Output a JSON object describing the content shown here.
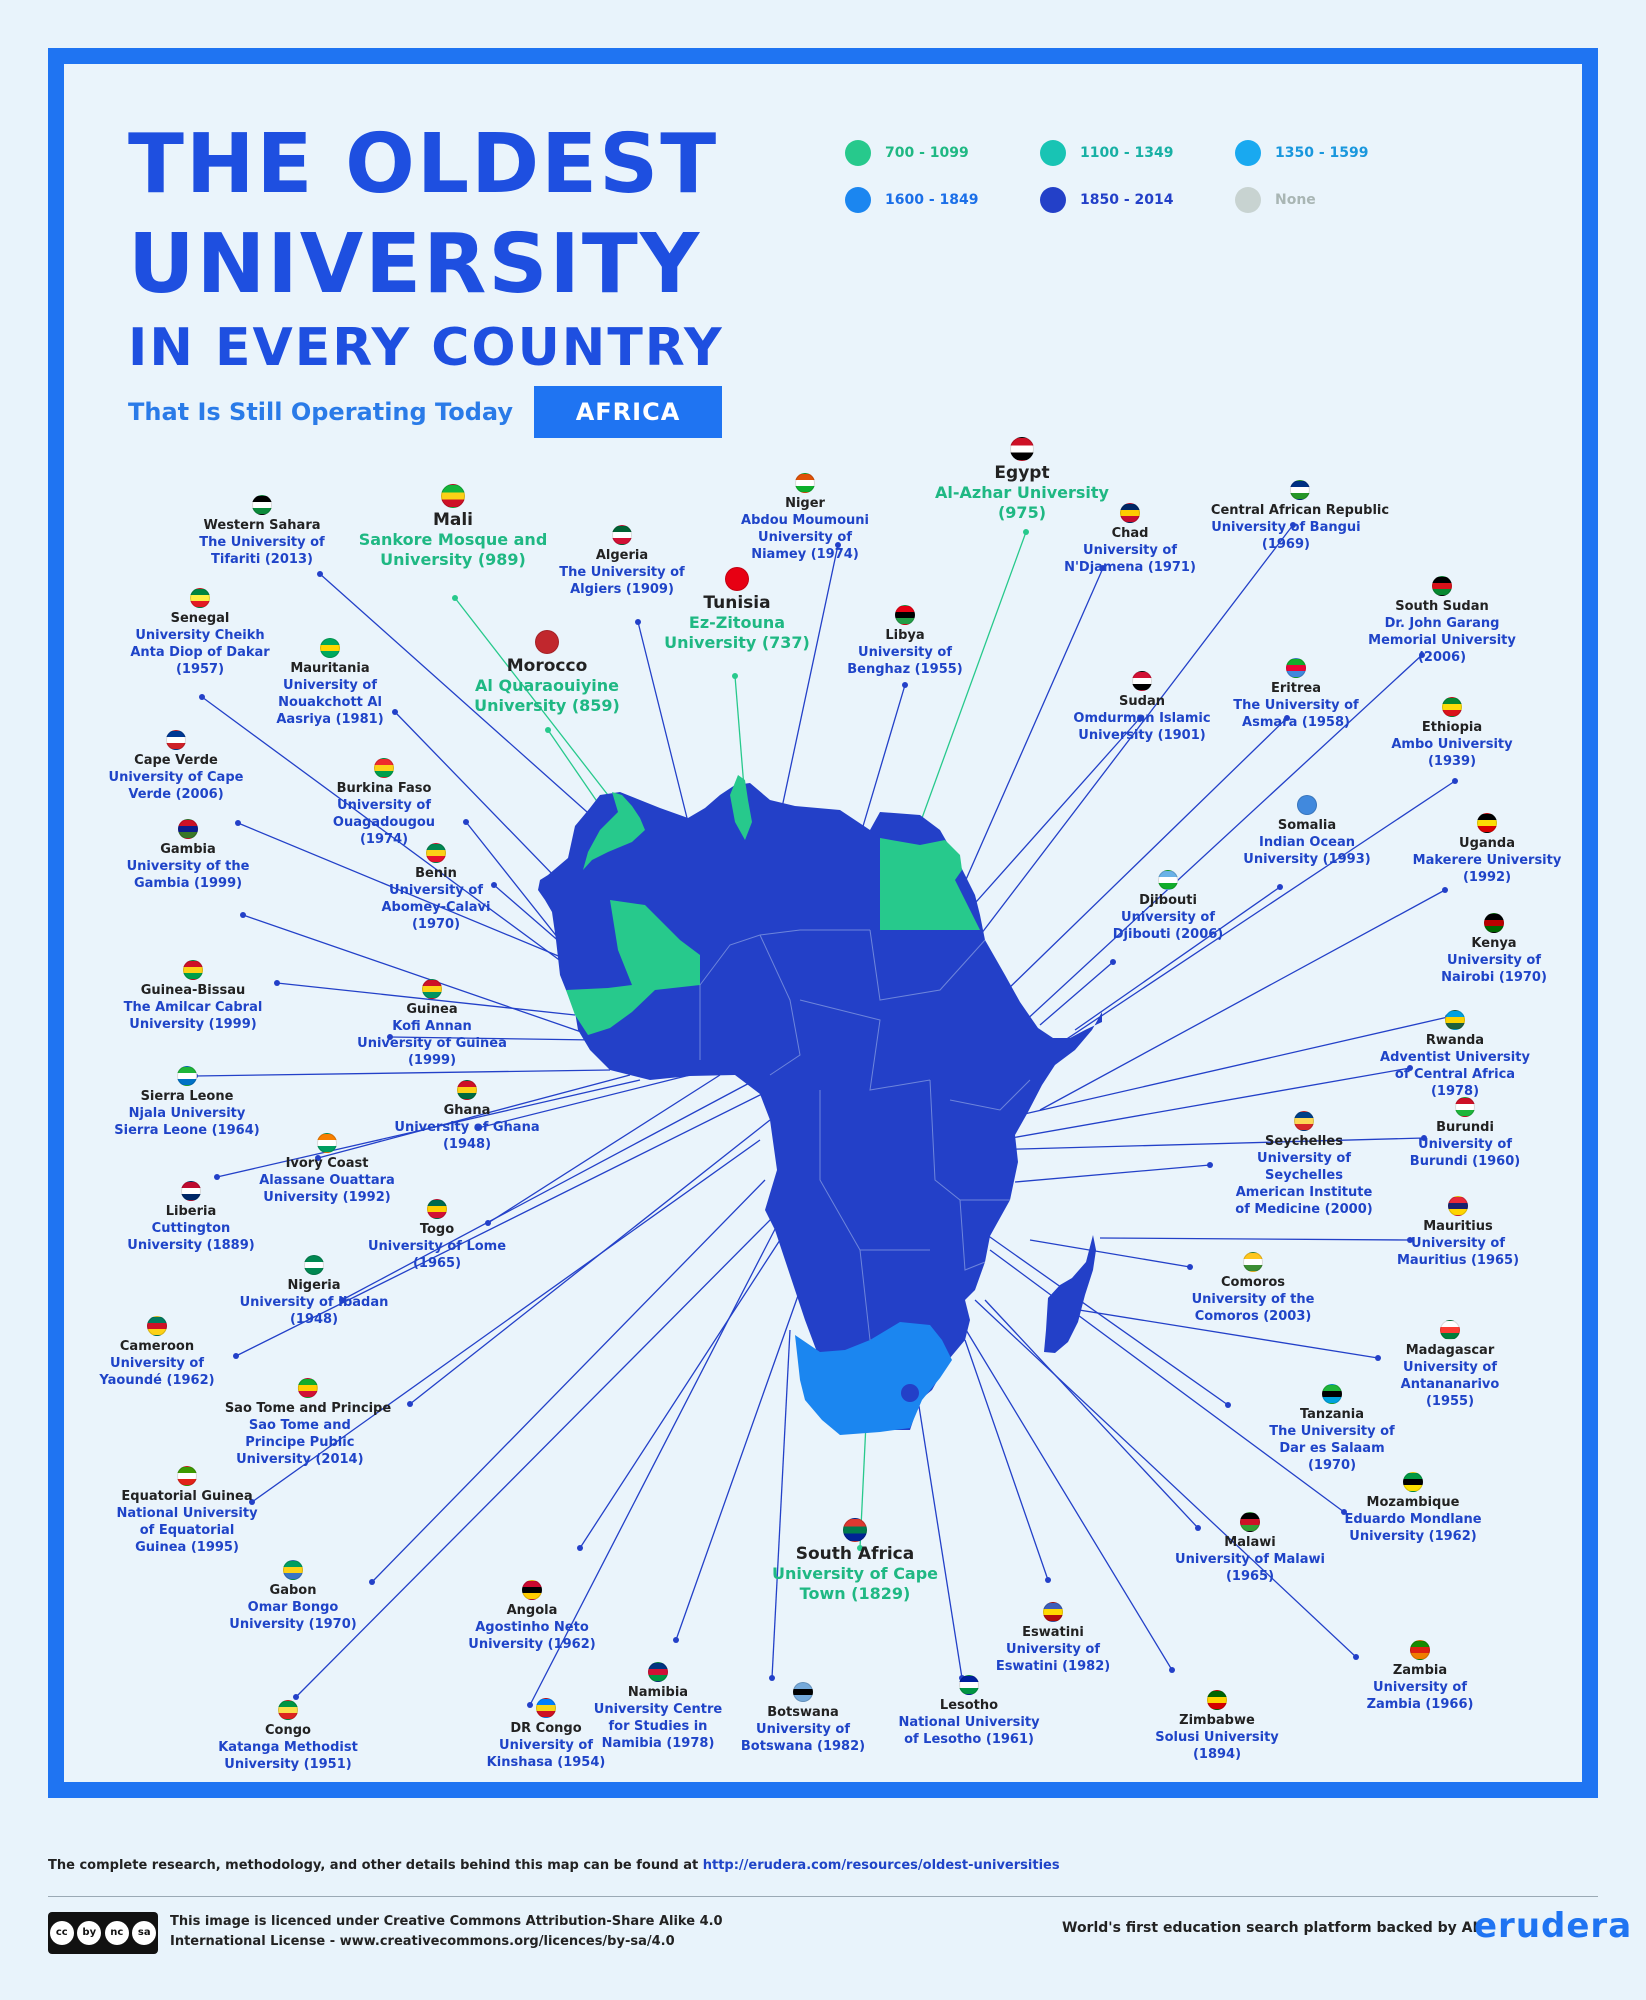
{
  "title": {
    "line1": "THE OLDEST",
    "line2": "UNIVERSITY",
    "line3": "IN EVERY COUNTRY"
  },
  "subtitle": "That Is Still Operating Today",
  "region": "AFRICA",
  "legend": [
    {
      "label": "700 - 1099",
      "color": "#27c98c"
    },
    {
      "label": "1100 - 1349",
      "color": "#18c4b4"
    },
    {
      "label": "1350 - 1599",
      "color": "#19a9f0"
    },
    {
      "label": "1600 - 1849",
      "color": "#1b86f0"
    },
    {
      "label": "1850 - 2014",
      "color": "#2340c8"
    },
    {
      "label": "None",
      "color": "#c8d3d1"
    }
  ],
  "colors": {
    "africa": "#2340c8",
    "early": "#27c98c",
    "southafrica": "#1b86f0",
    "leader": "#2340c8",
    "leader_early": "#27c98c",
    "leader_sa": "#1b86f0"
  },
  "countries": [
    {
      "country": "Western Sahara",
      "university": "The University of Tifariti (2013)",
      "icon": "western-sahara-flag",
      "flag": [
        "#000",
        "#fff",
        "#0a8a3a"
      ]
    },
    {
      "country": "Mali",
      "university": "Sankore Mosque and University (989)",
      "icon": "mali-flag",
      "flag": [
        "#14b53a",
        "#fcd116",
        "#ce1126"
      ]
    },
    {
      "country": "Algeria",
      "university": "The University of Algiers (1909)",
      "icon": "algeria-flag",
      "flag": [
        "#006233",
        "#fff",
        "#d21034"
      ]
    },
    {
      "country": "Niger",
      "university": "Abdou Moumouni University of Niamey (1974)",
      "icon": "niger-flag",
      "flag": [
        "#e05206",
        "#fff",
        "#0db02b"
      ]
    },
    {
      "country": "Tunisia",
      "university": "Ez-Zitouna University (737)",
      "icon": "tunisia-flag",
      "flag": [
        "#e70013",
        "#e70013",
        "#e70013"
      ]
    },
    {
      "country": "Egypt",
      "university": "Al-Azhar University (975)",
      "icon": "egypt-flag",
      "flag": [
        "#ce1126",
        "#fff",
        "#000"
      ]
    },
    {
      "country": "Chad",
      "university": "University of N'Djamena (1971)",
      "icon": "chad-flag",
      "flag": [
        "#002664",
        "#fecb00",
        "#c60c30"
      ]
    },
    {
      "country": "Central African Republic",
      "university": "University of Bangui (1969)",
      "icon": "car-flag",
      "flag": [
        "#003082",
        "#fff",
        "#289728"
      ]
    },
    {
      "country": "Senegal",
      "university": "University Cheikh Anta Diop of Dakar (1957)",
      "icon": "senegal-flag",
      "flag": [
        "#00853f",
        "#fdef42",
        "#e31b23"
      ]
    },
    {
      "country": "Mauritania",
      "university": "University of Nouakchott Al Aasriya (1981)",
      "icon": "mauritania-flag",
      "flag": [
        "#00a95c",
        "#ffd700",
        "#00a95c"
      ]
    },
    {
      "country": "Morocco",
      "university": "Al Quaraouiyine University (859)",
      "icon": "morocco-flag",
      "flag": [
        "#c1272d",
        "#c1272d",
        "#c1272d"
      ]
    },
    {
      "country": "Libya",
      "university": "University of Benghaz (1955)",
      "icon": "libya-flag",
      "flag": [
        "#e70013",
        "#000",
        "#239e46"
      ]
    },
    {
      "country": "South Sudan",
      "university": "Dr. John Garang Memorial University (2006)",
      "icon": "south-sudan-flag",
      "flag": [
        "#000",
        "#da121a",
        "#078930"
      ]
    },
    {
      "country": "Sudan",
      "university": "Omdurman Islamic University (1901)",
      "icon": "sudan-flag",
      "flag": [
        "#d21034",
        "#fff",
        "#000"
      ]
    },
    {
      "country": "Eritrea",
      "university": "The University of Asmara (1958)",
      "icon": "eritrea-flag",
      "flag": [
        "#12ad2b",
        "#ea0437",
        "#4189dd"
      ]
    },
    {
      "country": "Cape Verde",
      "university": "University of Cape Verde (2006)",
      "icon": "cape-verde-flag",
      "flag": [
        "#003893",
        "#fff",
        "#cf2027"
      ]
    },
    {
      "country": "Burkina Faso",
      "university": "University of Ouagadougou (1974)",
      "icon": "burkina-faso-flag",
      "flag": [
        "#ef2b2d",
        "#fcd116",
        "#009e49"
      ]
    },
    {
      "country": "Ethiopia",
      "university": "Ambo University (1939)",
      "icon": "ethiopia-flag",
      "flag": [
        "#078930",
        "#fcdd09",
        "#da121a"
      ]
    },
    {
      "country": "Gambia",
      "university": "University of the Gambia (1999)",
      "icon": "gambia-flag",
      "flag": [
        "#ce1126",
        "#0c1c8c",
        "#3a7728"
      ]
    },
    {
      "country": "Benin",
      "university": "University of Abomey-Calavi (1970)",
      "icon": "benin-flag",
      "flag": [
        "#008751",
        "#fcd116",
        "#e8112d"
      ]
    },
    {
      "country": "Somalia",
      "university": "Indian Ocean University (1993)",
      "icon": "somalia-flag",
      "flag": [
        "#4189dd",
        "#4189dd",
        "#4189dd"
      ]
    },
    {
      "country": "Uganda",
      "university": "Makerere University (1992)",
      "icon": "uganda-flag",
      "flag": [
        "#000",
        "#fcdc04",
        "#d90000"
      ]
    },
    {
      "country": "Djibouti",
      "university": "University of Djibouti (2006)",
      "icon": "djibouti-flag",
      "flag": [
        "#6ab2e7",
        "#fff",
        "#12ad2b"
      ]
    },
    {
      "country": "Kenya",
      "university": "University of Nairobi (1970)",
      "icon": "kenya-flag",
      "flag": [
        "#000",
        "#bb0000",
        "#006600"
      ]
    },
    {
      "country": "Guinea-Bissau",
      "university": "The Amilcar Cabral University (1999)",
      "icon": "guinea-bissau-flag",
      "flag": [
        "#ce1126",
        "#fcd116",
        "#009e49"
      ]
    },
    {
      "country": "Guinea",
      "university": "Kofi Annan University of Guinea (1999)",
      "icon": "guinea-flag",
      "flag": [
        "#ce1126",
        "#fcd116",
        "#009460"
      ]
    },
    {
      "country": "Rwanda",
      "university": "Adventist University of Central Africa (1978)",
      "icon": "rwanda-flag",
      "flag": [
        "#00a1de",
        "#fad201",
        "#20603d"
      ]
    },
    {
      "country": "Sierra Leone",
      "university": "Njala University Sierra Leone (1964)",
      "icon": "sierra-leone-flag",
      "flag": [
        "#1eb53a",
        "#fff",
        "#0072c6"
      ]
    },
    {
      "country": "Ghana",
      "university": "University of Ghana (1948)",
      "icon": "ghana-flag",
      "flag": [
        "#ce1126",
        "#fcd116",
        "#006b3f"
      ]
    },
    {
      "country": "Burundi",
      "university": "University of Burundi (1960)",
      "icon": "burundi-flag",
      "flag": [
        "#ce1126",
        "#fff",
        "#1eb53a"
      ]
    },
    {
      "country": "Seychelles",
      "university": "University of Seychelles American Institute of Medicine (2000)",
      "icon": "seychelles-flag",
      "flag": [
        "#003f87",
        "#fcd856",
        "#d62828"
      ]
    },
    {
      "country": "Ivory Coast",
      "university": "Alassane Ouattara University (1992)",
      "icon": "ivory-coast-flag",
      "flag": [
        "#f77f00",
        "#fff",
        "#009e60"
      ]
    },
    {
      "country": "Liberia",
      "university": "Cuttington University (1889)",
      "icon": "liberia-flag",
      "flag": [
        "#bf0a30",
        "#fff",
        "#002868"
      ]
    },
    {
      "country": "Togo",
      "university": "University of Lome (1965)",
      "icon": "togo-flag",
      "flag": [
        "#006a4e",
        "#ffce00",
        "#d21034"
      ]
    },
    {
      "country": "Mauritius",
      "university": "University of Mauritius (1965)",
      "icon": "mauritius-flag",
      "flag": [
        "#ea2839",
        "#1a206d",
        "#ffd500"
      ]
    },
    {
      "country": "Comoros",
      "university": "University of the Comoros (2003)",
      "icon": "comoros-flag",
      "flag": [
        "#ffc61e",
        "#fff",
        "#3d8e33"
      ]
    },
    {
      "country": "Nigeria",
      "university": "University of Ibadan (1948)",
      "icon": "nigeria-flag",
      "flag": [
        "#008751",
        "#fff",
        "#008751"
      ]
    },
    {
      "country": "Cameroon",
      "university": "University of Yaoundé (1962)",
      "icon": "cameroon-flag",
      "flag": [
        "#007a5e",
        "#ce1126",
        "#fcd116"
      ]
    },
    {
      "country": "Madagascar",
      "university": "University of Antananarivo (1955)",
      "icon": "madagascar-flag",
      "flag": [
        "#fff",
        "#fc3d32",
        "#007e3a"
      ]
    },
    {
      "country": "Sao Tome and Principe",
      "university": "Sao Tome and Principe Public University (2014)",
      "icon": "sao-tome-flag",
      "flag": [
        "#12ad2b",
        "#ffce00",
        "#d21034"
      ]
    },
    {
      "country": "Tanzania",
      "university": "The University of Dar es Salaam (1970)",
      "icon": "tanzania-flag",
      "flag": [
        "#1eb53a",
        "#000",
        "#00a3dd"
      ]
    },
    {
      "country": "Equatorial Guinea",
      "university": "National University of Equatorial Guinea (1995)",
      "icon": "equatorial-guinea-flag",
      "flag": [
        "#3e9a00",
        "#fff",
        "#e32118"
      ]
    },
    {
      "country": "Mozambique",
      "university": "Eduardo Mondlane University (1962)",
      "icon": "mozambique-flag",
      "flag": [
        "#009a44",
        "#000",
        "#fce100"
      ]
    },
    {
      "country": "Malawi",
      "university": "University of Malawi (1965)",
      "icon": "malawi-flag",
      "flag": [
        "#000",
        "#ce1126",
        "#339e35"
      ]
    },
    {
      "country": "South Africa",
      "university": "University of Cape Town (1829)",
      "icon": "south-africa-flag",
      "flag": [
        "#de3831",
        "#007a4d",
        "#002395"
      ]
    },
    {
      "country": "Gabon",
      "university": "Omar Bongo University (1970)",
      "icon": "gabon-flag",
      "flag": [
        "#009e60",
        "#fcd116",
        "#3a75c4"
      ]
    },
    {
      "country": "Angola",
      "university": "Agostinho Neto University (1962)",
      "icon": "angola-flag",
      "flag": [
        "#cc092f",
        "#000",
        "#ffcb00"
      ]
    },
    {
      "country": "Eswatini",
      "university": "University of Eswatini (1982)",
      "icon": "eswatini-flag",
      "flag": [
        "#3e5eb9",
        "#ffd900",
        "#b10c0c"
      ]
    },
    {
      "country": "Zambia",
      "university": "University of Zambia (1966)",
      "icon": "zambia-flag",
      "flag": [
        "#198a00",
        "#de2010",
        "#ef7d00"
      ]
    },
    {
      "country": "Namibia",
      "university": "University Centre for Studies in Namibia (1978)",
      "icon": "namibia-flag",
      "flag": [
        "#003580",
        "#d21034",
        "#009543"
      ]
    },
    {
      "country": "Botswana",
      "university": "University of Botswana (1982)",
      "icon": "botswana-flag",
      "flag": [
        "#75aadb",
        "#000",
        "#75aadb"
      ]
    },
    {
      "country": "Zimbabwe",
      "university": "Solusi University (1894)",
      "icon": "zimbabwe-flag",
      "flag": [
        "#006400",
        "#ffd200",
        "#d40000"
      ]
    },
    {
      "country": "Congo",
      "university": "Katanga Methodist University (1951)",
      "icon": "congo-flag",
      "flag": [
        "#009543",
        "#fbde4a",
        "#dc241f"
      ]
    },
    {
      "country": "DR Congo",
      "university": "University of Kinshasa (1954)",
      "icon": "dr-congo-flag",
      "flag": [
        "#007fff",
        "#f7d618",
        "#ce1021"
      ]
    },
    {
      "country": "Lesotho",
      "university": "National University of Lesotho (1961)",
      "icon": "lesotho-flag",
      "flag": [
        "#00209f",
        "#fff",
        "#009543"
      ]
    }
  ],
  "footer": {
    "note": "The complete research, methodology, and other details behind this map can be found at",
    "url": "http://erudera.com/resources/oldest-universities",
    "license_line1": "This image is licenced under Creative Commons Attribution-Share Alike 4.0",
    "license_line2": "International License - www.creativecommons.org/licences/by-sa/4.0",
    "cc_badge": [
      "cc",
      "by",
      "nc",
      "sa"
    ],
    "tagline": "World's first education search platform backed by AI",
    "brand": "erudera"
  }
}
